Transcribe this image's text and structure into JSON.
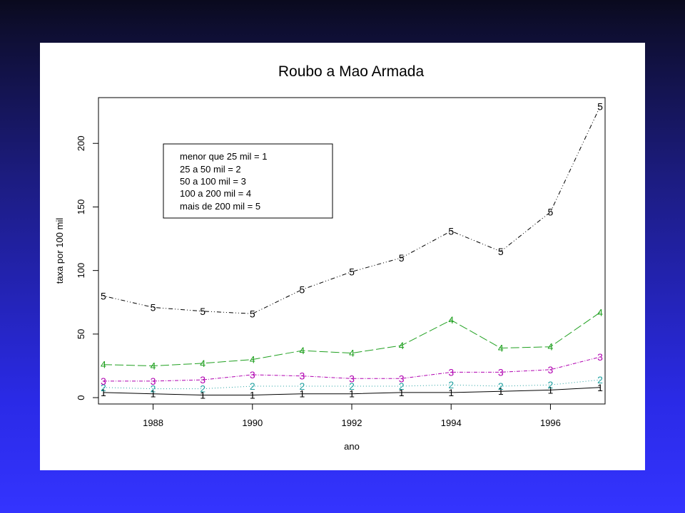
{
  "chart_data": {
    "type": "line",
    "title": "Roubo a Mao Armada",
    "xlabel": "ano",
    "ylabel": "taxa por 100 mil",
    "x": [
      1987,
      1988,
      1989,
      1990,
      1991,
      1992,
      1993,
      1994,
      1995,
      1996,
      1997
    ],
    "xlim": [
      1986.9,
      1997.1
    ],
    "ylim": [
      -5,
      236
    ],
    "xticks": [
      1988,
      1990,
      1992,
      1994,
      1996
    ],
    "yticks": [
      0,
      50,
      100,
      150,
      200
    ],
    "grid": false,
    "legend_position": "top-left",
    "legend": [
      "menor que 25 mil = 1",
      "25 a 50 mil = 2",
      "50 a 100 mil = 3",
      "100 a 200 mil = 4",
      "mais de 200 mil = 5"
    ],
    "series": [
      {
        "marker": "1",
        "color": "#000000",
        "dash": "none",
        "values": [
          4,
          3,
          2,
          2,
          3,
          3,
          4,
          4,
          5,
          6,
          8
        ]
      },
      {
        "marker": "2",
        "color": "#20a0a0",
        "dash": "1,3",
        "values": [
          8,
          7,
          7,
          9,
          9,
          9,
          9,
          10,
          9,
          10,
          14
        ]
      },
      {
        "marker": "3",
        "color": "#b000b0",
        "dash": "5,2,1,2",
        "values": [
          13,
          13,
          14,
          18,
          17,
          15,
          15,
          20,
          20,
          22,
          32
        ]
      },
      {
        "marker": "4",
        "color": "#20a020",
        "dash": "12,4",
        "values": [
          26,
          25,
          27,
          30,
          37,
          35,
          41,
          61,
          39,
          40,
          67
        ]
      },
      {
        "marker": "5",
        "color": "#000000",
        "dash": "1,3,1,3,6,3",
        "values": [
          80,
          71,
          68,
          66,
          85,
          99,
          110,
          131,
          115,
          146,
          229
        ]
      }
    ]
  }
}
